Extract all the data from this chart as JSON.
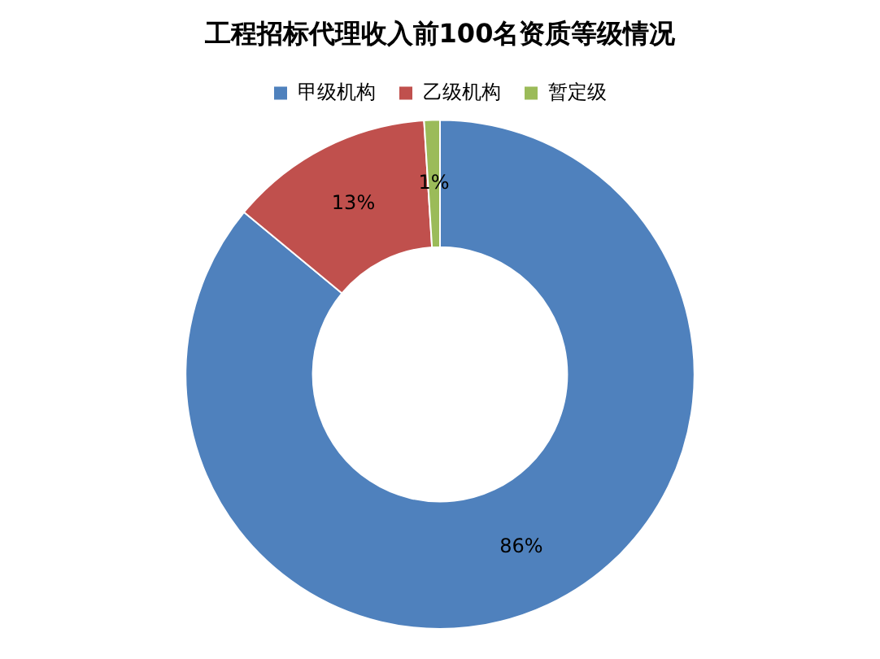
{
  "chart_data": {
    "type": "donut",
    "title": "工程招标代理收入前100名资质等级情况",
    "categories": [
      "甲级机构",
      "乙级机构",
      "暂定级"
    ],
    "values": [
      86,
      13,
      1
    ],
    "colors": [
      "#4f81bd",
      "#c0504d",
      "#9bbb59"
    ],
    "value_labels": [
      "86%",
      "13%",
      "1%"
    ],
    "legend": "top"
  }
}
